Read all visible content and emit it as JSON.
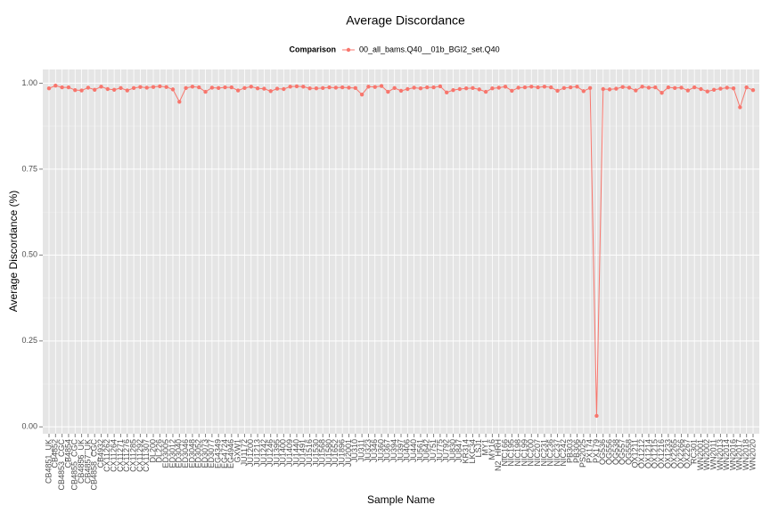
{
  "chart_data": {
    "type": "line",
    "title": "Average Discordance",
    "x_label": "Sample Name",
    "y_label": "Average Discordance (%)",
    "legend_title": "Comparison",
    "legend_position": "top",
    "grid": true,
    "categories": [
      "CB4851_UK",
      "CB4852",
      "CB4853_CGC",
      "CB4854",
      "CB4855_CGC",
      "CB4856_UK",
      "CB4857_UK",
      "CB4858_CGC",
      "CB4932",
      "CX11262",
      "CX11264",
      "CX11271",
      "CX11276",
      "CX11285",
      "CX11292",
      "CX11307",
      "DL200",
      "DL226",
      "ED3005",
      "ED3012",
      "ED3040",
      "ED3046",
      "ED3048",
      "ED3052",
      "ED3073",
      "ED3077",
      "EG4349",
      "EG4724",
      "EG4946",
      "GXW1",
      "JU1172",
      "JU1200",
      "JU1213",
      "JU1242",
      "JU1246",
      "JU1395",
      "JU1400",
      "JU1409",
      "JU1440",
      "JU1491",
      "JU1516",
      "JU1530",
      "JU1568",
      "JU1580",
      "JU1652",
      "JU1896",
      "JU2001",
      "JU310",
      "JU311",
      "JU323",
      "JU346",
      "JU360",
      "JU367",
      "JU394",
      "JU397",
      "JU406",
      "JU440",
      "JU561",
      "JU642",
      "JU751",
      "JU775",
      "JU792",
      "JU830",
      "JU847",
      "KR314",
      "LKC34",
      "LSJ1",
      "MY1",
      "MY16",
      "N2_HRH",
      "NIC166",
      "NIC195",
      "NIC198",
      "NIC199",
      "NIC200",
      "NIC207",
      "NIC231",
      "NIC236",
      "NIC237",
      "NIC242",
      "PB303",
      "PB306",
      "PS2025",
      "PX174",
      "PX179",
      "QG536",
      "QG556",
      "QG538",
      "QG557",
      "QG558",
      "QX1211",
      "QX1212",
      "QX1214",
      "QX1215",
      "QX1216",
      "QX1233",
      "QX2265",
      "QX2266",
      "QX2267",
      "RC301",
      "WN2001",
      "WN2002",
      "WN2011",
      "WN2013",
      "WN2014",
      "WN2016",
      "WN2017",
      "WN2018",
      "WN2020"
    ],
    "series": [
      {
        "name": "00_all_bams.Q40__01b_BGI2_set.Q40",
        "color": "#F8766D",
        "values": [
          0.985,
          0.993,
          0.988,
          0.988,
          0.98,
          0.979,
          0.987,
          0.981,
          0.99,
          0.983,
          0.981,
          0.986,
          0.979,
          0.986,
          0.989,
          0.987,
          0.989,
          0.991,
          0.989,
          0.982,
          0.946,
          0.986,
          0.99,
          0.988,
          0.975,
          0.987,
          0.986,
          0.988,
          0.988,
          0.979,
          0.986,
          0.99,
          0.985,
          0.984,
          0.977,
          0.984,
          0.983,
          0.99,
          0.991,
          0.99,
          0.985,
          0.985,
          0.986,
          0.988,
          0.987,
          0.988,
          0.987,
          0.986,
          0.967,
          0.99,
          0.989,
          0.992,
          0.975,
          0.986,
          0.978,
          0.983,
          0.987,
          0.985,
          0.988,
          0.988,
          0.991,
          0.973,
          0.98,
          0.983,
          0.985,
          0.986,
          0.982,
          0.975,
          0.985,
          0.987,
          0.99,
          0.978,
          0.987,
          0.988,
          0.99,
          0.988,
          0.99,
          0.988,
          0.978,
          0.986,
          0.988,
          0.99,
          0.977,
          0.986,
          0.032,
          0.983,
          0.982,
          0.984,
          0.989,
          0.987,
          0.979,
          0.99,
          0.987,
          0.988,
          0.972,
          0.988,
          0.986,
          0.987,
          0.979,
          0.988,
          0.983,
          0.976,
          0.981,
          0.984,
          0.987,
          0.985,
          0.93,
          0.988,
          0.98
        ]
      }
    ],
    "ylim": [
      -0.02,
      1.04
    ],
    "yticks": [
      {
        "value": 0,
        "label": "0.00"
      },
      {
        "value": 0.25,
        "label": "0.25"
      },
      {
        "value": 0.5,
        "label": "0.50"
      },
      {
        "value": 0.75,
        "label": "0.75"
      },
      {
        "value": 1,
        "label": "1.00"
      }
    ]
  }
}
